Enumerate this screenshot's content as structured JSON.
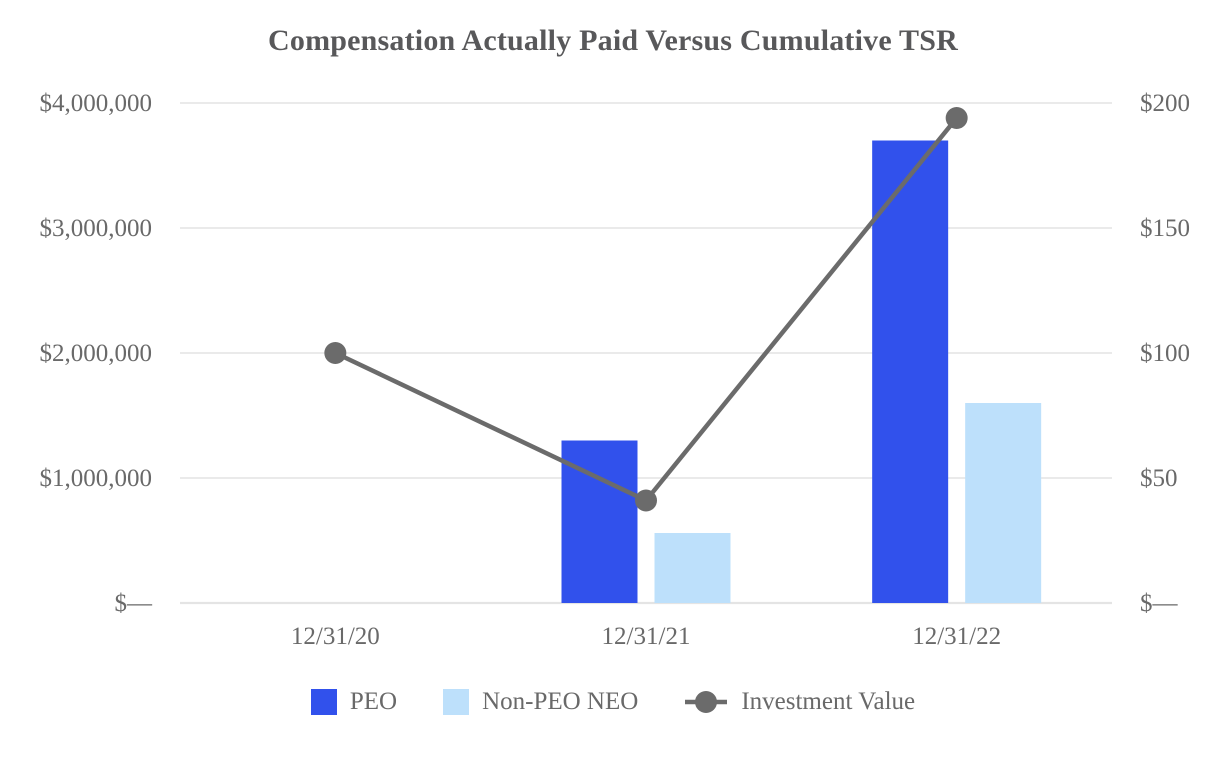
{
  "chart_data": {
    "type": "bar+line combo",
    "title": "Compensation Actually Paid Versus Cumulative TSR",
    "categories": [
      "12/31/20",
      "12/31/21",
      "12/31/22"
    ],
    "series": [
      {
        "name": "PEO",
        "type": "bar",
        "axis": "left",
        "color": "#3151ec",
        "values": [
          0,
          1300000,
          3700000
        ]
      },
      {
        "name": "Non-PEO NEO",
        "type": "bar",
        "axis": "left",
        "color": "#bde0fb",
        "values": [
          0,
          560000,
          1600000
        ]
      },
      {
        "name": "Investment Value",
        "type": "line",
        "axis": "right",
        "color": "#6b6b6b",
        "values": [
          100,
          41,
          194
        ]
      }
    ],
    "left_axis": {
      "min": 0,
      "max": 4000000,
      "ticks": [
        {
          "value": 4000000,
          "label": "$4,000,000"
        },
        {
          "value": 3000000,
          "label": "$3,000,000"
        },
        {
          "value": 2000000,
          "label": "$2,000,000"
        },
        {
          "value": 1000000,
          "label": "$1,000,000"
        },
        {
          "value": 0,
          "label": "$—"
        }
      ]
    },
    "right_axis": {
      "min": 0,
      "max": 200,
      "ticks": [
        {
          "value": 200,
          "label": "$200"
        },
        {
          "value": 150,
          "label": "$150"
        },
        {
          "value": 100,
          "label": "$100"
        },
        {
          "value": 50,
          "label": "$50"
        },
        {
          "value": 0,
          "label": "$—"
        }
      ]
    },
    "legend_position": "bottom",
    "grid": "horizontal",
    "grid_color": "#e4e4e4",
    "text_color": "#696969",
    "title_color": "#58585a"
  }
}
